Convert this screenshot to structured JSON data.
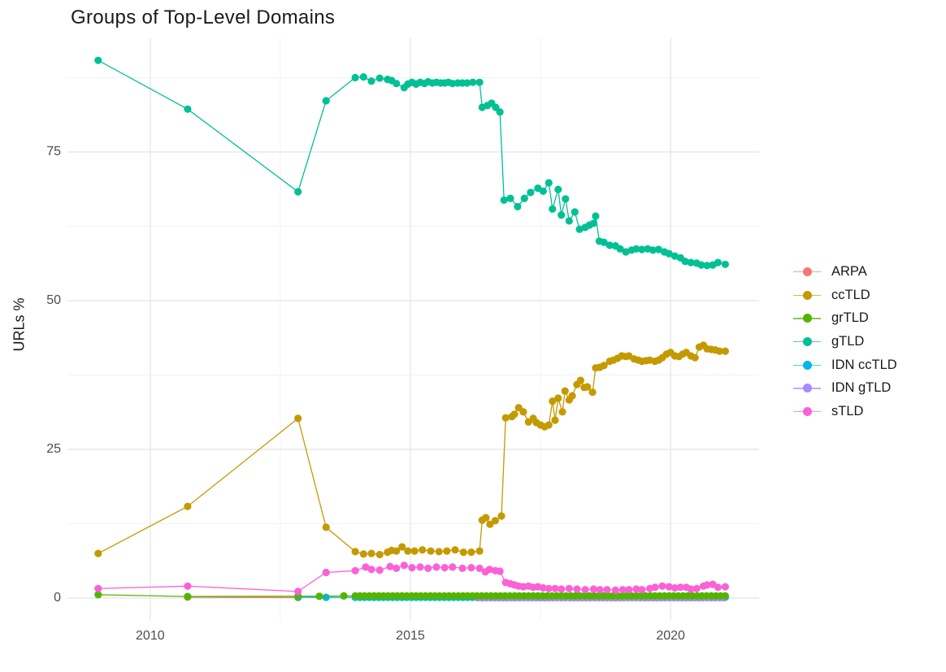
{
  "title": "Groups of Top-Level Domains",
  "axes": {
    "y_label": "URLs %",
    "x_tick_labels": [
      "2010",
      "2015",
      "2020"
    ],
    "y_tick_labels": [
      "0",
      "25",
      "50",
      "75"
    ]
  },
  "chart_data": {
    "type": "line",
    "title": "Groups of Top-Level Domains",
    "xlabel": "",
    "ylabel": "URLs %",
    "legend_position": "right",
    "grid": true,
    "x_domain": [
      2008.41,
      2021.7
    ],
    "y_domain": [
      -3.83,
      94.26
    ],
    "x_ticks": [
      2010,
      2015,
      2020
    ],
    "x_minor_ticks": [
      2012.5,
      2017.5
    ],
    "y_ticks": [
      0,
      25,
      50,
      75
    ],
    "y_minor_ticks": [
      12.5,
      37.5,
      62.5,
      87.5
    ],
    "grid_major_color": "#e4e4e4",
    "grid_minor_color": "#f2f2f2",
    "series": [
      {
        "name": "ARPA",
        "color": "#F8766D",
        "points": [
          [
            2010.72,
            0.15
          ],
          [
            2012.84,
            0.08
          ]
        ]
      },
      {
        "name": "ccTLD",
        "color": "#C49A00",
        "points": [
          [
            2009.0,
            7.5
          ],
          [
            2010.72,
            15.4
          ],
          [
            2012.84,
            30.2
          ],
          [
            2013.38,
            11.9
          ],
          [
            2013.94,
            7.8
          ],
          [
            2014.1,
            7.4
          ],
          [
            2014.25,
            7.5
          ],
          [
            2014.41,
            7.3
          ],
          [
            2014.56,
            7.7
          ],
          [
            2014.64,
            8.0
          ],
          [
            2014.73,
            7.9
          ],
          [
            2014.84,
            8.6
          ],
          [
            2014.95,
            7.9
          ],
          [
            2015.08,
            7.9
          ],
          [
            2015.23,
            8.1
          ],
          [
            2015.39,
            7.9
          ],
          [
            2015.55,
            7.8
          ],
          [
            2015.7,
            7.9
          ],
          [
            2015.86,
            8.1
          ],
          [
            2016.02,
            7.7
          ],
          [
            2016.17,
            7.7
          ],
          [
            2016.33,
            7.9
          ],
          [
            2016.38,
            13.1
          ],
          [
            2016.45,
            13.5
          ],
          [
            2016.53,
            12.4
          ],
          [
            2016.63,
            13.0
          ],
          [
            2016.75,
            13.8
          ],
          [
            2016.83,
            30.3
          ],
          [
            2016.95,
            30.5
          ],
          [
            2017.0,
            30.9
          ],
          [
            2017.08,
            32.0
          ],
          [
            2017.17,
            31.3
          ],
          [
            2017.27,
            29.6
          ],
          [
            2017.36,
            30.2
          ],
          [
            2017.42,
            29.5
          ],
          [
            2017.5,
            29.1
          ],
          [
            2017.58,
            28.8
          ],
          [
            2017.66,
            29.1
          ],
          [
            2017.73,
            33.1
          ],
          [
            2017.78,
            29.9
          ],
          [
            2017.84,
            33.6
          ],
          [
            2017.92,
            31.3
          ],
          [
            2017.97,
            34.8
          ],
          [
            2018.05,
            33.3
          ],
          [
            2018.11,
            34.0
          ],
          [
            2018.2,
            35.9
          ],
          [
            2018.27,
            36.6
          ],
          [
            2018.34,
            35.4
          ],
          [
            2018.4,
            35.5
          ],
          [
            2018.5,
            34.6
          ],
          [
            2018.56,
            38.7
          ],
          [
            2018.64,
            38.8
          ],
          [
            2018.72,
            39.1
          ],
          [
            2018.83,
            39.8
          ],
          [
            2018.9,
            40.0
          ],
          [
            2018.98,
            40.3
          ],
          [
            2019.06,
            40.7
          ],
          [
            2019.14,
            40.6
          ],
          [
            2019.2,
            40.7
          ],
          [
            2019.3,
            40.2
          ],
          [
            2019.38,
            40.0
          ],
          [
            2019.45,
            39.8
          ],
          [
            2019.53,
            39.9
          ],
          [
            2019.6,
            40.0
          ],
          [
            2019.7,
            39.8
          ],
          [
            2019.77,
            40.0
          ],
          [
            2019.84,
            40.4
          ],
          [
            2019.92,
            41.0
          ],
          [
            2020.0,
            41.3
          ],
          [
            2020.08,
            40.7
          ],
          [
            2020.16,
            40.6
          ],
          [
            2020.23,
            41.0
          ],
          [
            2020.3,
            41.3
          ],
          [
            2020.39,
            40.7
          ],
          [
            2020.47,
            40.4
          ],
          [
            2020.55,
            42.2
          ],
          [
            2020.63,
            42.5
          ],
          [
            2020.7,
            41.9
          ],
          [
            2020.78,
            41.8
          ],
          [
            2020.86,
            41.7
          ],
          [
            2020.94,
            41.5
          ],
          [
            2021.05,
            41.5
          ]
        ]
      },
      {
        "name": "grTLD",
        "color": "#53B400",
        "points": [
          [
            2009.0,
            0.55
          ],
          [
            2010.72,
            0.25
          ],
          [
            2012.84,
            0.3
          ],
          [
            2013.25,
            0.3
          ],
          [
            2013.72,
            0.35
          ]
        ],
        "runs": [
          {
            "from": 2013.94,
            "to": 2021.05,
            "step": 0.09,
            "value": 0.35
          }
        ]
      },
      {
        "name": "gTLD",
        "color": "#00C094",
        "points": [
          [
            2009.0,
            90.4
          ],
          [
            2010.72,
            82.2
          ],
          [
            2012.84,
            68.3
          ],
          [
            2013.38,
            83.6
          ],
          [
            2013.94,
            87.5
          ],
          [
            2014.1,
            87.6
          ],
          [
            2014.25,
            86.9
          ],
          [
            2014.41,
            87.4
          ],
          [
            2014.56,
            87.2
          ],
          [
            2014.64,
            87.0
          ],
          [
            2014.73,
            86.5
          ],
          [
            2014.88,
            85.8
          ],
          [
            2014.95,
            86.4
          ],
          [
            2015.03,
            86.7
          ],
          [
            2015.11,
            86.4
          ],
          [
            2015.19,
            86.7
          ],
          [
            2015.27,
            86.5
          ],
          [
            2015.34,
            86.8
          ],
          [
            2015.42,
            86.6
          ],
          [
            2015.5,
            86.7
          ],
          [
            2015.58,
            86.6
          ],
          [
            2015.66,
            86.6
          ],
          [
            2015.73,
            86.7
          ],
          [
            2015.81,
            86.5
          ],
          [
            2015.91,
            86.6
          ],
          [
            2016.0,
            86.6
          ],
          [
            2016.09,
            86.6
          ],
          [
            2016.2,
            86.7
          ],
          [
            2016.33,
            86.7
          ],
          [
            2016.38,
            82.5
          ],
          [
            2016.48,
            82.8
          ],
          [
            2016.56,
            83.2
          ],
          [
            2016.64,
            82.5
          ],
          [
            2016.72,
            81.7
          ],
          [
            2016.8,
            66.9
          ],
          [
            2016.92,
            67.2
          ],
          [
            2017.06,
            65.8
          ],
          [
            2017.19,
            67.2
          ],
          [
            2017.31,
            68.2
          ],
          [
            2017.45,
            68.9
          ],
          [
            2017.55,
            68.4
          ],
          [
            2017.66,
            69.8
          ],
          [
            2017.73,
            65.4
          ],
          [
            2017.84,
            68.7
          ],
          [
            2017.9,
            64.4
          ],
          [
            2017.98,
            67.1
          ],
          [
            2018.05,
            63.4
          ],
          [
            2018.16,
            64.9
          ],
          [
            2018.25,
            62.0
          ],
          [
            2018.36,
            62.3
          ],
          [
            2018.44,
            62.7
          ],
          [
            2018.52,
            63.0
          ],
          [
            2018.56,
            64.2
          ],
          [
            2018.63,
            60.0
          ],
          [
            2018.72,
            59.8
          ],
          [
            2018.83,
            59.3
          ],
          [
            2018.94,
            59.2
          ],
          [
            2019.03,
            58.7
          ],
          [
            2019.14,
            58.2
          ],
          [
            2019.25,
            58.5
          ],
          [
            2019.34,
            58.7
          ],
          [
            2019.45,
            58.6
          ],
          [
            2019.56,
            58.7
          ],
          [
            2019.66,
            58.5
          ],
          [
            2019.77,
            58.6
          ],
          [
            2019.88,
            58.2
          ],
          [
            2019.97,
            57.9
          ],
          [
            2020.08,
            57.5
          ],
          [
            2020.19,
            57.2
          ],
          [
            2020.28,
            56.6
          ],
          [
            2020.39,
            56.4
          ],
          [
            2020.5,
            56.3
          ],
          [
            2020.59,
            56.0
          ],
          [
            2020.7,
            55.9
          ],
          [
            2020.81,
            56.0
          ],
          [
            2020.91,
            56.4
          ],
          [
            2021.05,
            56.1
          ]
        ]
      },
      {
        "name": "IDN ccTLD",
        "color": "#00B6EB",
        "points": [
          [
            2012.84,
            0.15
          ],
          [
            2013.38,
            0.12
          ]
        ],
        "runs": [
          {
            "from": 2013.94,
            "to": 2021.05,
            "step": 0.09,
            "value": 0.12
          }
        ]
      },
      {
        "name": "IDN gTLD",
        "color": "#A58AFF",
        "points": [],
        "runs": [
          {
            "from": 2016.3,
            "to": 2021.05,
            "step": 0.08,
            "value": 0.05
          }
        ]
      },
      {
        "name": "sTLD",
        "color": "#FB61D7",
        "points": [
          [
            2009.0,
            1.6
          ],
          [
            2010.72,
            2.0
          ],
          [
            2012.84,
            1.1
          ],
          [
            2013.38,
            4.3
          ],
          [
            2013.94,
            4.6
          ],
          [
            2014.14,
            5.2
          ],
          [
            2014.25,
            4.8
          ],
          [
            2014.41,
            4.7
          ],
          [
            2014.61,
            5.3
          ],
          [
            2014.73,
            5.0
          ],
          [
            2014.88,
            5.5
          ],
          [
            2015.03,
            5.1
          ],
          [
            2015.19,
            5.2
          ],
          [
            2015.34,
            5.0
          ],
          [
            2015.5,
            5.2
          ],
          [
            2015.66,
            5.1
          ],
          [
            2015.81,
            5.2
          ],
          [
            2016.0,
            5.0
          ],
          [
            2016.17,
            5.1
          ],
          [
            2016.33,
            5.0
          ],
          [
            2016.44,
            4.4
          ],
          [
            2016.52,
            4.8
          ],
          [
            2016.63,
            4.6
          ],
          [
            2016.72,
            4.5
          ],
          [
            2016.83,
            2.6
          ],
          [
            2016.92,
            2.4
          ],
          [
            2017.0,
            2.2
          ],
          [
            2017.08,
            2.0
          ],
          [
            2017.17,
            1.9
          ],
          [
            2017.27,
            2.0
          ],
          [
            2017.36,
            1.8
          ],
          [
            2017.45,
            1.9
          ],
          [
            2017.55,
            1.7
          ],
          [
            2017.66,
            1.6
          ],
          [
            2017.78,
            1.6
          ],
          [
            2017.9,
            1.5
          ],
          [
            2018.05,
            1.6
          ],
          [
            2018.2,
            1.5
          ],
          [
            2018.36,
            1.4
          ],
          [
            2018.52,
            1.5
          ],
          [
            2018.64,
            1.4
          ],
          [
            2018.78,
            1.4
          ],
          [
            2018.94,
            1.3
          ],
          [
            2019.08,
            1.4
          ],
          [
            2019.2,
            1.4
          ],
          [
            2019.34,
            1.5
          ],
          [
            2019.45,
            1.4
          ],
          [
            2019.6,
            1.6
          ],
          [
            2019.7,
            1.8
          ],
          [
            2019.84,
            2.0
          ],
          [
            2019.97,
            1.9
          ],
          [
            2020.08,
            1.7
          ],
          [
            2020.19,
            1.8
          ],
          [
            2020.3,
            1.8
          ],
          [
            2020.39,
            1.5
          ],
          [
            2020.5,
            1.6
          ],
          [
            2020.63,
            2.0
          ],
          [
            2020.7,
            2.2
          ],
          [
            2020.81,
            2.3
          ],
          [
            2020.91,
            1.8
          ],
          [
            2021.05,
            1.9
          ]
        ]
      }
    ]
  }
}
